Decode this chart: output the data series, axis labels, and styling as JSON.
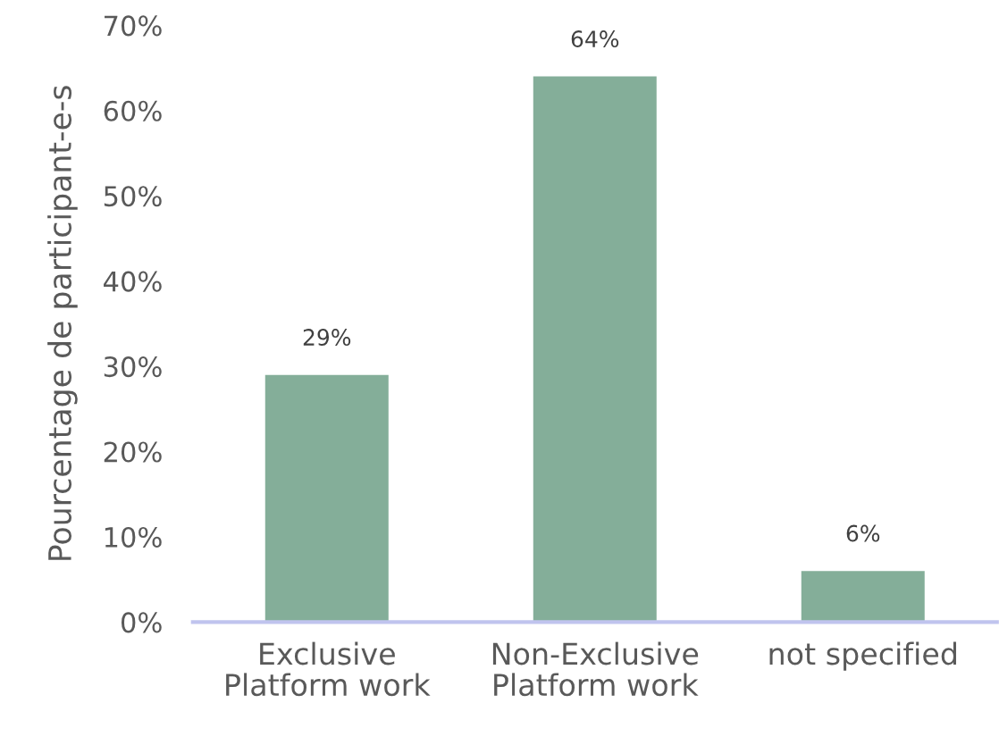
{
  "chart_data": {
    "type": "bar",
    "ylabel": "Pourcentage de participant-e-s",
    "categories": [
      "Exclusive\nPlatform work",
      "Non-Exclusive\nPlatform work",
      "not specified"
    ],
    "values": [
      29,
      64,
      6
    ],
    "color": "#84ae99",
    "value_labels": [
      "29%",
      "64%",
      "6%"
    ],
    "ylim": [
      0,
      70
    ],
    "yticks": [
      {
        "value": 0,
        "label": "0%"
      },
      {
        "value": 10,
        "label": "10%"
      },
      {
        "value": 20,
        "label": "20%"
      },
      {
        "value": 30,
        "label": "30%"
      },
      {
        "value": 40,
        "label": "40%"
      },
      {
        "value": 50,
        "label": "50%"
      },
      {
        "value": 60,
        "label": "60%"
      },
      {
        "value": 70,
        "label": "70%"
      }
    ],
    "grid": false,
    "legend": false
  }
}
